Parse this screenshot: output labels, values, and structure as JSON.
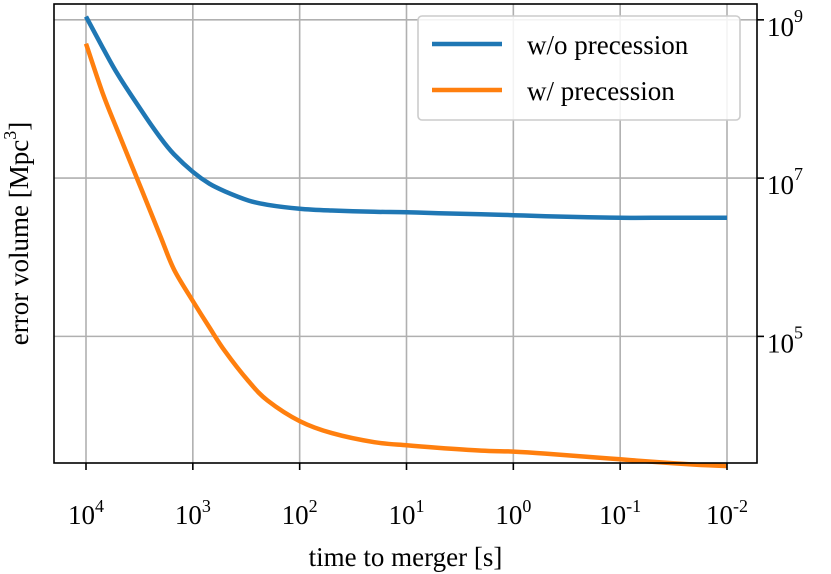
{
  "chart_data": {
    "type": "line",
    "xlabel": "time to merger [s]",
    "ylabel": "error volume [Mpc",
    "ylabel_exponent": "3",
    "ylabel_suffix": "]",
    "x_scale": "log, reversed",
    "y_scale": "log",
    "y_axis_side": "right",
    "xlim": [
      10000,
      0.01
    ],
    "ylim_log10": [
      3.4,
      9.2
    ],
    "grid": true,
    "legend_position": "upper right",
    "x_ticks": [
      {
        "value": 10000,
        "base": "10",
        "exp": "4"
      },
      {
        "value": 1000,
        "base": "10",
        "exp": "3"
      },
      {
        "value": 100,
        "base": "10",
        "exp": "2"
      },
      {
        "value": 10,
        "base": "10",
        "exp": "1"
      },
      {
        "value": 1,
        "base": "10",
        "exp": "0"
      },
      {
        "value": 0.1,
        "base": "10",
        "exp": "-1"
      },
      {
        "value": 0.01,
        "base": "10",
        "exp": "-2"
      }
    ],
    "y_ticks": [
      {
        "value": 100000,
        "base": "10",
        "exp": "5"
      },
      {
        "value": 10000000,
        "base": "10",
        "exp": "7"
      },
      {
        "value": 1000000000,
        "base": "10",
        "exp": "9"
      }
    ],
    "series": [
      {
        "name": "w/o precession",
        "color": "#1f77b4",
        "x": [
          10000,
          7000,
          5000,
          3000,
          2000,
          1500,
          1000,
          700,
          500,
          300,
          200,
          100,
          50,
          20,
          10,
          5,
          2,
          1,
          0.5,
          0.2,
          0.1,
          0.05,
          0.02,
          0.01
        ],
        "y": [
          1100000000.0,
          450000000.0,
          200000000.0,
          70000000.0,
          32000000.0,
          20000000.0,
          12000000.0,
          8500000.0,
          6800000.0,
          5200000.0,
          4600000.0,
          4100000.0,
          3900000.0,
          3750000.0,
          3700000.0,
          3600000.0,
          3500000.0,
          3400000.0,
          3300000.0,
          3200000.0,
          3150000.0,
          3150000.0,
          3150000.0,
          3150000.0
        ]
      },
      {
        "name": "w/ precession",
        "color": "#ff7f0e",
        "x": [
          10000,
          7000,
          5000,
          3000,
          2000,
          1500,
          1000,
          700,
          500,
          300,
          200,
          100,
          50,
          20,
          10,
          5,
          2,
          1,
          0.5,
          0.2,
          0.1,
          0.05,
          0.02,
          0.01
        ],
        "y": [
          500000000.0,
          120000000.0,
          38000000.0,
          7000000.0,
          1800000.0,
          700000.0,
          280000.0,
          130000.0,
          65000.0,
          27000.0,
          15500.0,
          8500.0,
          6000.0,
          4600.0,
          4200.0,
          3900.0,
          3600.0,
          3500.0,
          3300.0,
          3000.0,
          2800.0,
          2600.0,
          2400.0,
          2300.0
        ]
      }
    ]
  }
}
